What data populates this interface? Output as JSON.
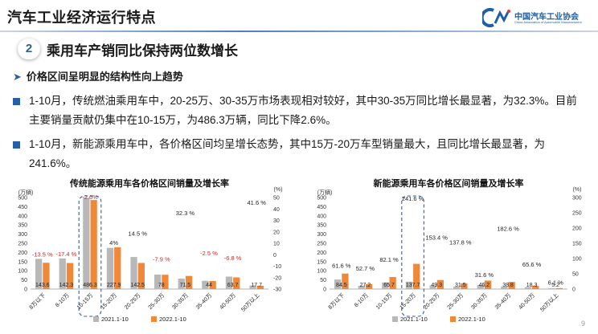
{
  "header": {
    "page_title": "汽车工业经济运行特点",
    "logo_cn": "中国汽车工业协会",
    "logo_en": "China Association of Automobile Manufacturers"
  },
  "section": {
    "number": "2",
    "heading": "乘用车产销同比保持两位数增长"
  },
  "sub_bullet": "价格区间呈明显的结构性向上趋势",
  "paragraphs": [
    "1-10月，传统燃油乘用车中，20-25万、30-35万市场表现相对较好，其中30-35万同比增长最显著，为32.3%。目前主要销量贡献仍集中在10-15万，为486.3万辆，同比下降2.6%。",
    "1-10月，新能源乘用车中，各价格区间均呈增长态势，其中15万-20万车型销量最大，且同比增长最显著，为241.6%。"
  ],
  "colors": {
    "accent": "#2a5fa5",
    "bar_2021": "#b8b8b8",
    "bar_2022": "#f0883a",
    "negative_label": "#e02020"
  },
  "chart_data": [
    {
      "type": "bar",
      "title": "传统能源乘用车各价格区间销量及增长率",
      "y_unit_left": "(万辆)",
      "y_unit_right": "(%)",
      "categories": [
        "8万以下",
        "8-10万",
        "10-15万",
        "15-20万",
        "20-25万",
        "25-30万",
        "30-35万",
        "35-40万",
        "40-50万",
        "50万以上"
      ],
      "series": [
        {
          "name": "2021.1-10",
          "values": [
            165,
            167,
            499,
            225,
            175,
            79,
            57,
            45,
            68,
            19
          ]
        },
        {
          "name": "2022.1-10",
          "values": [
            143.6,
            142.3,
            486.3,
            227.9,
            142.5,
            78,
            71.5,
            44,
            63.7,
            17.7
          ]
        }
      ],
      "bar_value_labels": [
        "143.6",
        "142.3",
        "486.3",
        "227.9",
        "142.5",
        "78",
        "71.5",
        "44",
        "63.7",
        "17.7"
      ],
      "growth_labels": [
        "-13.5 %",
        "-17.4 %",
        "-2.6%",
        "4%",
        "14.5 %",
        "-7.9 %",
        "32.3 %",
        "-2.5 %",
        "-6.8 %",
        "41.6 %"
      ],
      "growth_values": [
        -13.5,
        -17.4,
        -2.6,
        4,
        14.5,
        -7.9,
        32.3,
        -2.5,
        -6.8,
        41.6
      ],
      "left_ticks": [
        "0",
        "50",
        "100",
        "150",
        "200",
        "250",
        "300",
        "350",
        "400",
        "450",
        "500"
      ],
      "right_ticks": [
        "-30",
        "-20",
        "-10",
        "0",
        "10",
        "20",
        "30",
        "40",
        "50"
      ],
      "ylim": [
        0,
        500
      ],
      "y2lim": [
        -30,
        50
      ],
      "highlight_index": 2,
      "legend": [
        "2021.1-10",
        "2022.1-10"
      ],
      "legend_position": "bottom"
    },
    {
      "type": "bar",
      "title": "新能源乘用车各价格区间销量及增长率",
      "y_unit_left": "(万辆)",
      "y_unit_right": "(%)",
      "categories": [
        "8万以下",
        "8-10万",
        "10-15万",
        "15-20万",
        "20-25万",
        "25-30万",
        "30-35万",
        "35-40万",
        "40-50万",
        "50万以上"
      ],
      "series": [
        {
          "name": "2021.1-10",
          "values": [
            52,
            18,
            36,
            40,
            20,
            13,
            22,
            14,
            11,
            5
          ]
        },
        {
          "name": "2022.1-10",
          "values": [
            84.5,
            27.2,
            65.7,
            137.7,
            49.3,
            31.5,
            46.2,
            38.8,
            18.3,
            5.2
          ]
        }
      ],
      "bar_value_labels": [
        "84.5",
        "27.2",
        "65.7",
        "137.7",
        "49.3",
        "31.5",
        "46.2",
        "38.8",
        "18.3",
        "5.2"
      ],
      "growth_labels": [
        "61.6 %",
        "52.7 %",
        "82.1 %",
        "241.6 %",
        "153.4 %",
        "137.8 %",
        "31.6 %",
        "182.6 %",
        "65.6 %",
        "6.1 %"
      ],
      "growth_values": [
        61.6,
        52.7,
        82.1,
        241.6,
        153.4,
        137.8,
        31.6,
        182.6,
        65.6,
        6.1
      ],
      "left_ticks": [
        "0",
        "50",
        "100",
        "150",
        "200",
        "250",
        "300",
        "350",
        "400",
        "450",
        "500"
      ],
      "right_ticks": [
        "0",
        "50",
        "100",
        "150",
        "200",
        "250",
        "300"
      ],
      "ylim": [
        0,
        500
      ],
      "y2lim": [
        0,
        300
      ],
      "highlight_index": 3,
      "legend": [
        "2021.1-10",
        "2022.1-10"
      ],
      "legend_position": "bottom"
    }
  ],
  "page_number": "9"
}
